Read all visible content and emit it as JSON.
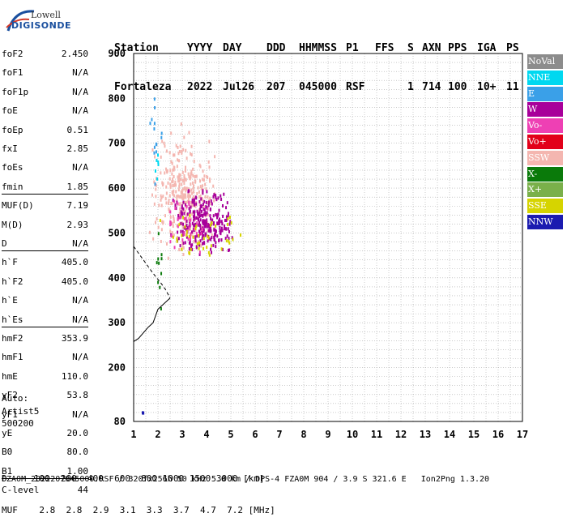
{
  "logo": {
    "word": "Lowell",
    "brand": "DIGISONDE"
  },
  "header": {
    "labels": [
      "Station",
      "YYYY",
      "DAY",
      "DDD",
      "HHMMSS",
      "P1",
      "FFS",
      "S",
      "AXN",
      "PPS",
      "IGA",
      "PS"
    ],
    "values": [
      "Fortaleza",
      "2022",
      "Jul26",
      "207",
      "045000",
      "RSF",
      "",
      "1",
      "714",
      "100",
      "10+",
      "11"
    ]
  },
  "params": [
    {
      "name": "foF2",
      "value": "2.450"
    },
    {
      "name": "foF1",
      "value": "N/A"
    },
    {
      "name": "foF1p",
      "value": "N/A"
    },
    {
      "name": "foE",
      "value": "N/A"
    },
    {
      "name": "foEp",
      "value": "0.51"
    },
    {
      "name": "fxI",
      "value": "2.85"
    },
    {
      "name": "foEs",
      "value": "N/A"
    },
    {
      "name": "fmin",
      "value": "1.85"
    },
    {
      "name": "MUF(D)",
      "value": "7.19"
    },
    {
      "name": "M(D)",
      "value": "2.93"
    },
    {
      "name": "D",
      "value": "N/A"
    },
    {
      "name": "h`F",
      "value": "405.0"
    },
    {
      "name": "h`F2",
      "value": "405.0"
    },
    {
      "name": "h`E",
      "value": "N/A"
    },
    {
      "name": "h`Es",
      "value": "N/A"
    },
    {
      "name": "hmF2",
      "value": "353.9"
    },
    {
      "name": "hmF1",
      "value": "N/A"
    },
    {
      "name": "hmE",
      "value": "110.0"
    },
    {
      "name": "yF2",
      "value": "53.8"
    },
    {
      "name": "yF1",
      "value": "N/A"
    },
    {
      "name": "yE",
      "value": "20.0"
    },
    {
      "name": "B0",
      "value": "80.0"
    },
    {
      "name": "B1",
      "value": "1.00"
    },
    {
      "name": "C-level",
      "value": "44"
    }
  ],
  "auto": {
    "line1": "Auto:",
    "line2": "Artist5",
    "line3": "500200"
  },
  "legend": [
    {
      "label": "NoVal",
      "color": "#8c8c8c"
    },
    {
      "label": "NNE",
      "color": "#00d8f0"
    },
    {
      "label": "E",
      "color": "#3aa0e8"
    },
    {
      "label": "W",
      "color": "#a8009a"
    },
    {
      "label": "Vo-",
      "color": "#ee40b4"
    },
    {
      "label": "Vo+",
      "color": "#e2001a"
    },
    {
      "label": "SSW",
      "color": "#f4b6b0"
    },
    {
      "label": "X-",
      "color": "#0a7a0a"
    },
    {
      "label": "X+",
      "color": "#7ab04a"
    },
    {
      "label": "SSE",
      "color": "#d6d400"
    },
    {
      "label": "NNW",
      "color": "#1b1bb0"
    }
  ],
  "table": {
    "row1": "D     100  200  400  600  800 1000 1500 3000 [km]",
    "row2": "MUF    2.8  2.8  2.9  3.1  3.3  3.7  4.7  7.2 [MHz]"
  },
  "footer": "FZA0M_2022207045000.RSF / 320fx256h 50 kHz 5.0 km / DPS-4 FZA0M 904 / 3.9 S 321.6 E   Ion2Png 1.3.20",
  "chart_data": {
    "type": "scatter",
    "title": "",
    "xlabel": "",
    "ylabel": "",
    "xlim": [
      1,
      17
    ],
    "ylim": [
      80,
      900
    ],
    "xticks": [
      1,
      2,
      3,
      4,
      5,
      6,
      7,
      8,
      9,
      10,
      11,
      12,
      13,
      14,
      15,
      16,
      17
    ],
    "yticks": [
      80,
      200,
      300,
      400,
      500,
      600,
      700,
      800,
      900
    ],
    "grid": true,
    "legend_position": "right",
    "clusters": [
      {
        "name": "SSW",
        "color": "#f4b6b0",
        "xmin": 1.6,
        "xmax": 4.4,
        "ymin": 420,
        "ymax": 760,
        "count": 340
      },
      {
        "name": "W",
        "color": "#a8009a",
        "xmin": 2.4,
        "xmax": 5.2,
        "ymin": 430,
        "ymax": 620,
        "count": 280
      },
      {
        "name": "Vo-",
        "color": "#ee40b4",
        "xmin": 2.0,
        "xmax": 4.2,
        "ymin": 440,
        "ymax": 600,
        "count": 40
      },
      {
        "name": "SSE",
        "color": "#d6d400",
        "xmin": 1.8,
        "xmax": 5.8,
        "ymin": 430,
        "ymax": 560,
        "count": 45
      },
      {
        "name": "E",
        "color": "#3aa0e8",
        "xmin": 1.5,
        "xmax": 2.2,
        "ymin": 600,
        "ymax": 840,
        "count": 14
      },
      {
        "name": "NNE",
        "color": "#00d8f0",
        "xmin": 1.6,
        "xmax": 2.1,
        "ymin": 600,
        "ymax": 720,
        "count": 6
      },
      {
        "name": "X-",
        "color": "#0a7a0a",
        "xmin": 1.8,
        "xmax": 2.3,
        "ymin": 290,
        "ymax": 520,
        "count": 10
      },
      {
        "name": "NNW",
        "color": "#1b1bb0",
        "xmin": 1.2,
        "xmax": 1.5,
        "ymin": 100,
        "ymax": 105,
        "count": 3
      }
    ],
    "profile_line": [
      [
        2.5,
        355
      ],
      [
        2.3,
        345
      ],
      [
        2.0,
        330
      ],
      [
        1.8,
        300
      ],
      [
        1.6,
        290
      ],
      [
        1.2,
        265
      ],
      [
        1.0,
        258
      ]
    ],
    "profile_dashed": [
      [
        1.0,
        470
      ],
      [
        1.4,
        440
      ],
      [
        1.8,
        410
      ],
      [
        2.1,
        390
      ],
      [
        2.3,
        375
      ],
      [
        2.5,
        355
      ]
    ]
  }
}
